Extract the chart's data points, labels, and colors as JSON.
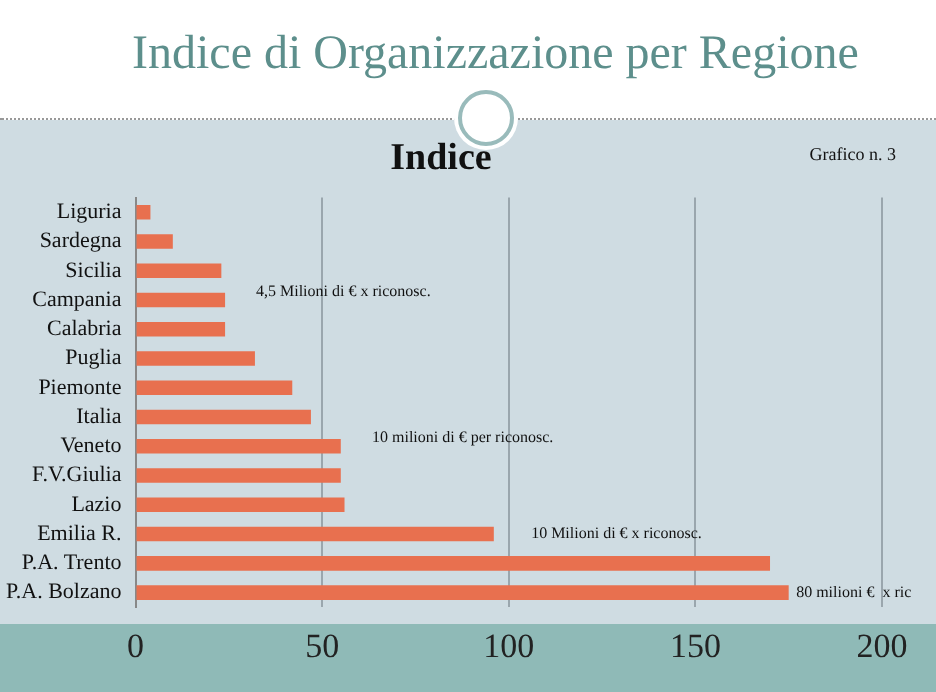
{
  "chart_data": {
    "type": "bar",
    "orientation": "horizontal",
    "title": "Indice di Organizzazione per Regione",
    "subtitle": "Indice",
    "categories": [
      "Liguria",
      "Sardegna",
      "Sicilia",
      "Campania",
      "Calabria",
      "Puglia",
      "Piemonte",
      "Italia",
      "Veneto",
      "F.V.Giulia",
      "Lazio",
      "Emilia R.",
      "P.A. Trento",
      "P.A. Bolzano"
    ],
    "values": [
      4,
      10,
      23,
      24,
      24,
      32,
      42,
      47,
      55,
      55,
      56,
      96,
      170,
      175
    ],
    "color": "#e8704f",
    "xlim": [
      0,
      200
    ],
    "xticks": [
      0,
      50,
      100,
      150,
      200
    ],
    "grid": "x",
    "annotations": [
      "Grafico n. 3",
      "4,5 Milioni di € x riconosc.",
      "10 milioni di € per riconosc.",
      {
        "text": "10 Milioni di € x riconosc.",
        "x": 106,
        "y": "Emilia R."
      },
      {
        "text": "80 milioni €  x ric",
        "x": 177,
        "y": "P.A. Bolzano"
      }
    ]
  }
}
